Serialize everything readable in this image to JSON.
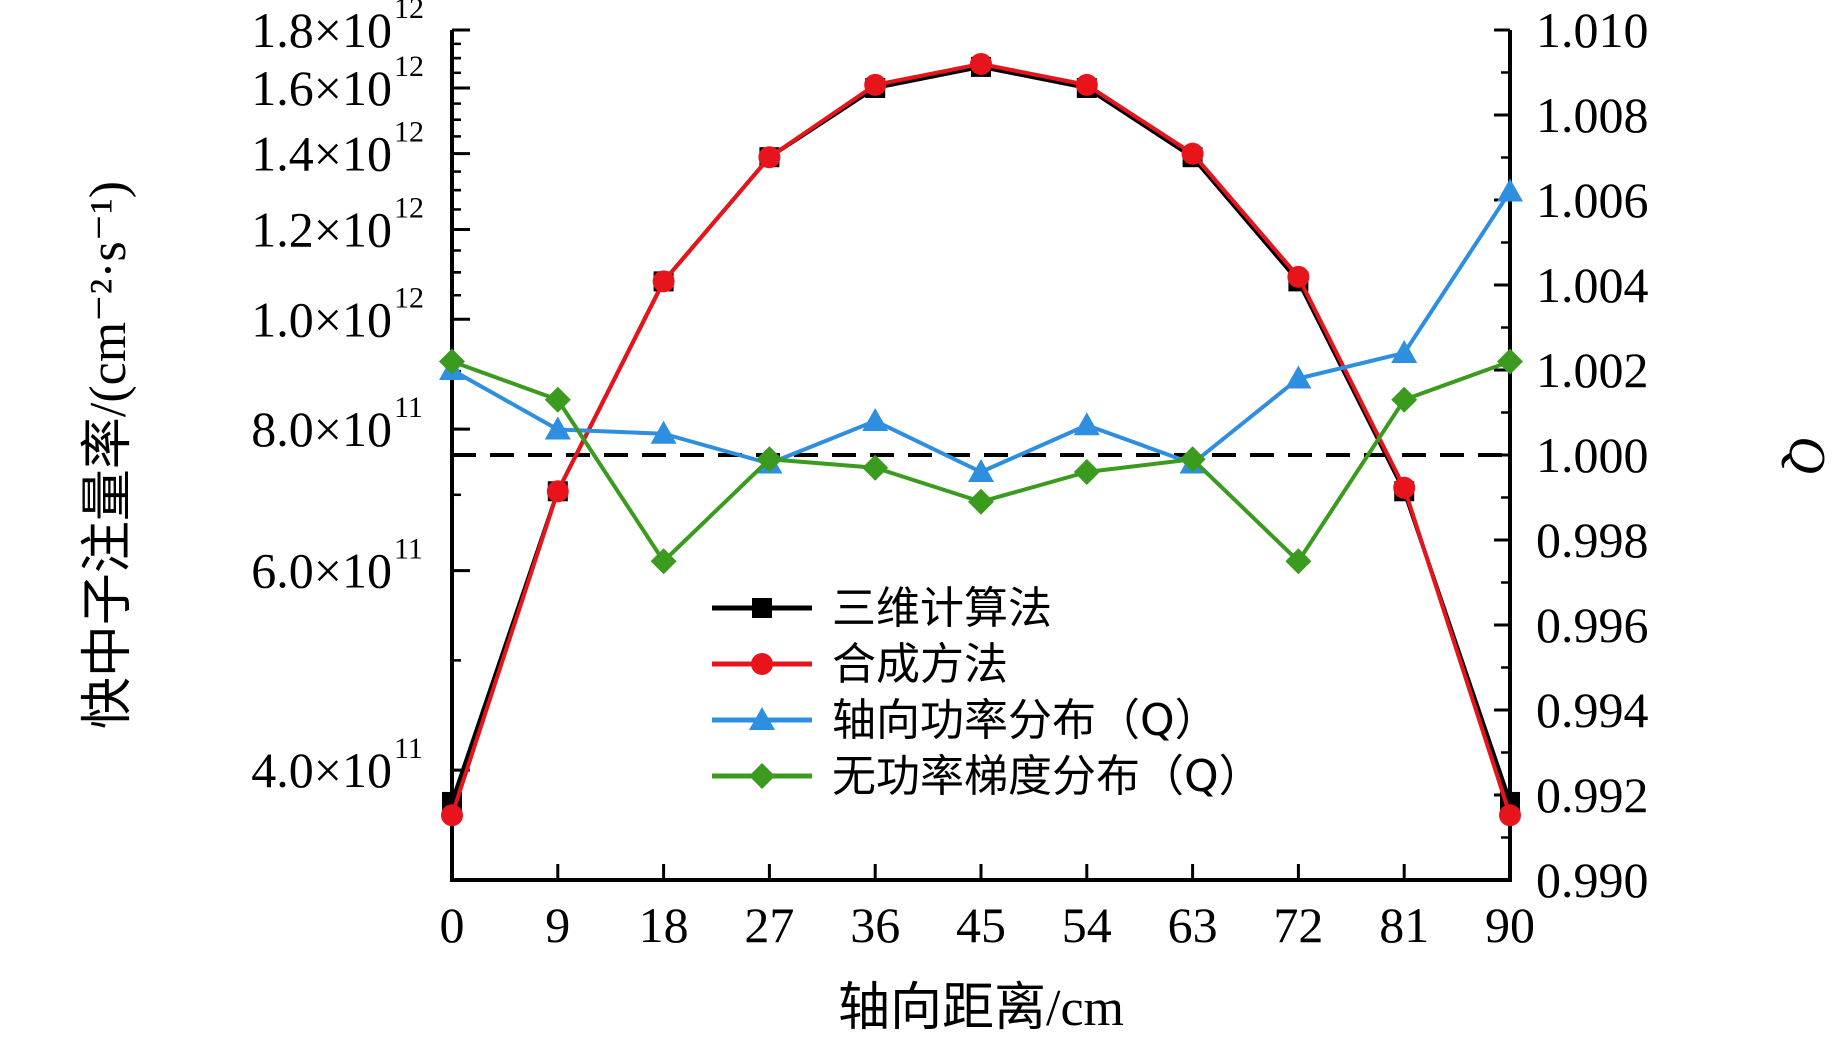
{
  "chart_data": {
    "type": "line",
    "title": "",
    "xlabel": "轴向距离/cm",
    "ylabel_left": "快中子注量率/(cm⁻²·s⁻¹)",
    "ylabel_right": "Q",
    "x": [
      0,
      9,
      18,
      27,
      36,
      45,
      54,
      63,
      72,
      81,
      90
    ],
    "x_tick_labels": [
      "0",
      "9",
      "18",
      "27",
      "36",
      "45",
      "54",
      "63",
      "72",
      "81",
      "90"
    ],
    "xlim": [
      0,
      90
    ],
    "ylim_left": [
      320000000000.0,
      1800000000000.0
    ],
    "yscale_left": "log",
    "y_left_ticks": [
      {
        "value": 400000000000.0,
        "mantissa": "4.0×10",
        "exp": "11"
      },
      {
        "value": 600000000000.0,
        "mantissa": "6.0×10",
        "exp": "11"
      },
      {
        "value": 800000000000.0,
        "mantissa": "8.0×10",
        "exp": "11"
      },
      {
        "value": 1000000000000.0,
        "mantissa": "1.0×10",
        "exp": "12"
      },
      {
        "value": 1200000000000.0,
        "mantissa": "1.2×10",
        "exp": "12"
      },
      {
        "value": 1400000000000.0,
        "mantissa": "1.4×10",
        "exp": "12"
      },
      {
        "value": 1600000000000.0,
        "mantissa": "1.6×10",
        "exp": "12"
      },
      {
        "value": 1800000000000.0,
        "mantissa": "1.8×10",
        "exp": "12"
      }
    ],
    "ylim_right": [
      0.99,
      1.01
    ],
    "y_right_ticks": [
      "0.990",
      "0.992",
      "0.994",
      "0.996",
      "0.998",
      "1.000",
      "1.002",
      "1.004",
      "1.006",
      "1.008",
      "1.010"
    ],
    "reference_line": {
      "axis": "right",
      "value": 1.0,
      "style": "dashed",
      "color": "#000000"
    },
    "series": [
      {
        "name": "三维计算法",
        "axis": "left",
        "marker": "square",
        "color": "#000000",
        "values": [
          375000000000.0,
          705000000000.0,
          1080000000000.0,
          1390000000000.0,
          1600000000000.0,
          1670000000000.0,
          1600000000000.0,
          1390000000000.0,
          1080000000000.0,
          705000000000.0,
          375000000000.0
        ]
      },
      {
        "name": "合成方法",
        "axis": "left",
        "marker": "circle",
        "color": "#e8141b",
        "values": [
          365000000000.0,
          705000000000.0,
          1080000000000.0,
          1390000000000.0,
          1610000000000.0,
          1680000000000.0,
          1610000000000.0,
          1400000000000.0,
          1090000000000.0,
          710000000000.0,
          365000000000.0
        ]
      },
      {
        "name": "轴向功率分布（Q）",
        "axis": "right",
        "marker": "triangle",
        "color": "#2e8fe0",
        "values": [
          1.002,
          1.0006,
          1.0005,
          0.9998,
          1.0008,
          0.9996,
          1.0007,
          0.9998,
          1.0018,
          1.0024,
          1.0062
        ]
      },
      {
        "name": "无功率梯度分布（Q）",
        "axis": "right",
        "marker": "diamond",
        "color": "#3a9b1e",
        "values": [
          1.0022,
          1.0013,
          0.9975,
          0.9999,
          0.9997,
          0.9989,
          0.9996,
          0.9999,
          0.9975,
          1.0013,
          1.0022
        ]
      }
    ],
    "legend": {
      "position": "lower-center",
      "entries": [
        "三维计算法",
        "合成方法",
        "轴向功率分布（Q）",
        "无功率梯度分布（Q）"
      ]
    }
  }
}
